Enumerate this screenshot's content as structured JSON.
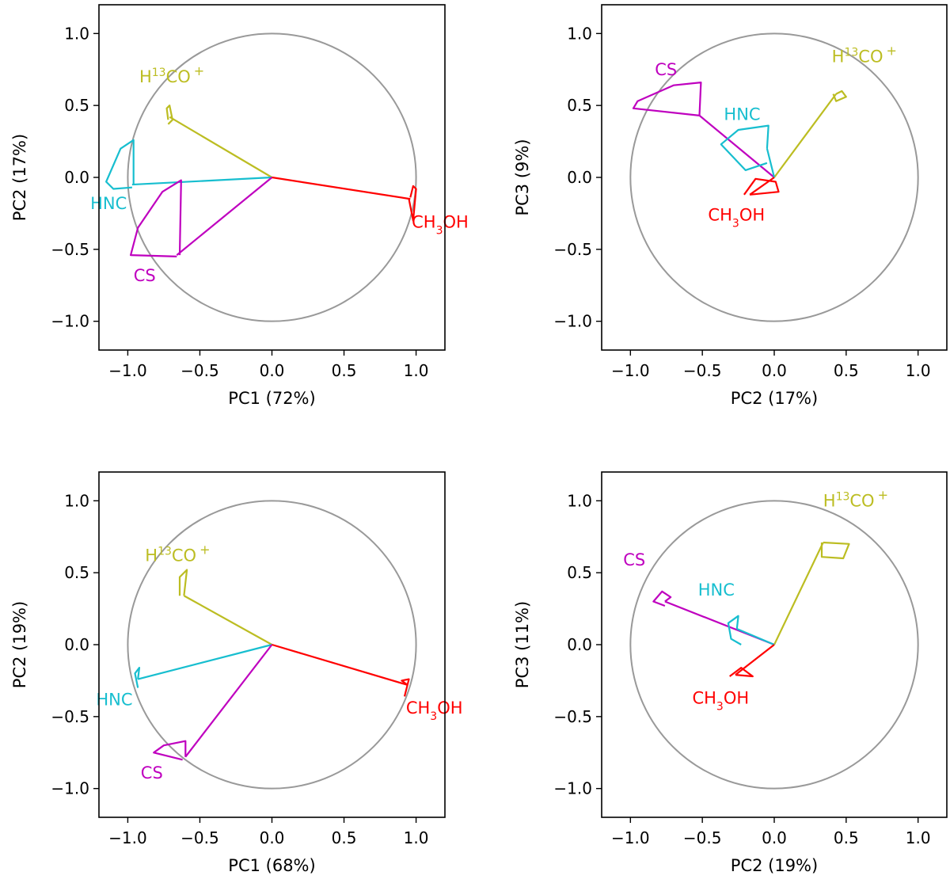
{
  "chart_data": [
    {
      "type": "biplot",
      "xlabel": "PC1 (72%)",
      "ylabel": "PC2 (17%)",
      "xlim": [
        -1.2,
        1.2
      ],
      "ylim": [
        -1.2,
        1.2
      ],
      "xticks": [
        "−1.0",
        "−0.5",
        "0.0",
        "0.5",
        "1.0"
      ],
      "yticks": [
        "−1.0",
        "−0.5",
        "0.0",
        "0.5",
        "1.0"
      ],
      "unit_circle": true,
      "vectors": [
        {
          "name": "H13CO+",
          "label": "H",
          "sup": "13",
          "rest": "CO",
          "sup2": "+",
          "color": "#bcbd22",
          "x": -0.71,
          "y": 0.42,
          "label_x": -0.92,
          "label_y": 0.66,
          "lobe": [
            [
              -0.72,
              0.4
            ],
            [
              -0.73,
              0.48
            ],
            [
              -0.71,
              0.5
            ],
            [
              -0.69,
              0.4
            ],
            [
              -0.72,
              0.37
            ]
          ]
        },
        {
          "name": "HNC",
          "label": "HNC",
          "color": "#17becf",
          "x": -0.97,
          "y": -0.05,
          "label_x": -1.26,
          "label_y": -0.22,
          "lobe": [
            [
              -0.96,
              -0.05
            ],
            [
              -0.96,
              0.26
            ],
            [
              -1.05,
              0.2
            ],
            [
              -1.15,
              -0.03
            ],
            [
              -1.1,
              -0.08
            ],
            [
              -0.97,
              -0.07
            ]
          ]
        },
        {
          "name": "CS",
          "label": "CS",
          "color": "#bf00bf",
          "x": -0.66,
          "y": -0.54,
          "label_x": -0.96,
          "label_y": -0.72,
          "lobe": [
            [
              -0.64,
              -0.54
            ],
            [
              -0.63,
              -0.02
            ],
            [
              -0.76,
              -0.1
            ],
            [
              -0.93,
              -0.35
            ],
            [
              -0.98,
              -0.54
            ],
            [
              -0.66,
              -0.55
            ]
          ]
        },
        {
          "name": "CH3OH",
          "label": "CH",
          "sub": "3",
          "rest": "OH",
          "color": "#ff0000",
          "x": 0.96,
          "y": -0.15,
          "label_x": 0.97,
          "label_y": -0.35,
          "lobe": [
            [
              0.96,
              -0.14
            ],
            [
              0.98,
              -0.06
            ],
            [
              1.0,
              -0.08
            ],
            [
              0.98,
              -0.3
            ],
            [
              0.95,
              -0.15
            ]
          ]
        }
      ]
    },
    {
      "type": "biplot",
      "xlabel": "PC2 (17%)",
      "ylabel": "PC3 (9%)",
      "xlim": [
        -1.2,
        1.2
      ],
      "ylim": [
        -1.2,
        1.2
      ],
      "xticks": [
        "−1.0",
        "−0.5",
        "0.0",
        "0.5",
        "1.0"
      ],
      "yticks": [
        "−1.0",
        "−0.5",
        "0.0",
        "0.5",
        "1.0"
      ],
      "unit_circle": true,
      "vectors": [
        {
          "name": "H13CO+",
          "label": "H",
          "sup": "13",
          "rest": "CO",
          "sup2": "+",
          "color": "#bcbd22",
          "x": 0.43,
          "y": 0.58,
          "label_x": 0.4,
          "label_y": 0.8,
          "lobe": [
            [
              0.43,
              0.58
            ],
            [
              0.47,
              0.6
            ],
            [
              0.5,
              0.56
            ],
            [
              0.43,
              0.53
            ],
            [
              0.41,
              0.58
            ]
          ]
        },
        {
          "name": "CS",
          "label": "CS",
          "color": "#bf00bf",
          "x": -0.52,
          "y": 0.43,
          "label_x": -0.83,
          "label_y": 0.71,
          "lobe": [
            [
              -0.52,
              0.43
            ],
            [
              -0.51,
              0.66
            ],
            [
              -0.7,
              0.64
            ],
            [
              -0.95,
              0.53
            ],
            [
              -0.98,
              0.48
            ],
            [
              -0.52,
              0.43
            ]
          ]
        },
        {
          "name": "HNC",
          "label": "HNC",
          "color": "#17becf",
          "x": -0.05,
          "y": 0.2,
          "label_x": -0.35,
          "label_y": 0.4,
          "lobe": [
            [
              -0.05,
              0.2
            ],
            [
              -0.04,
              0.36
            ],
            [
              -0.25,
              0.33
            ],
            [
              -0.37,
              0.23
            ],
            [
              -0.2,
              0.05
            ],
            [
              -0.05,
              0.1
            ]
          ]
        },
        {
          "name": "CH3OH",
          "label": "CH",
          "sub": "3",
          "rest": "OH",
          "color": "#ff0000",
          "x": -0.17,
          "y": -0.12,
          "label_x": -0.46,
          "label_y": -0.3,
          "lobe": [
            [
              -0.17,
              -0.12
            ],
            [
              0.03,
              -0.1
            ],
            [
              0.01,
              -0.03
            ],
            [
              -0.13,
              -0.01
            ],
            [
              -0.21,
              -0.12
            ]
          ]
        }
      ]
    },
    {
      "type": "biplot",
      "xlabel": "PC1 (68%)",
      "ylabel": "PC2 (19%)",
      "xlim": [
        -1.2,
        1.2
      ],
      "ylim": [
        -1.2,
        1.2
      ],
      "xticks": [
        "−1.0",
        "−0.5",
        "0.0",
        "0.5",
        "1.0"
      ],
      "yticks": [
        "−1.0",
        "−0.5",
        "0.0",
        "0.5",
        "1.0"
      ],
      "unit_circle": true,
      "vectors": [
        {
          "name": "H13CO+",
          "label": "H",
          "sup": "13",
          "rest": "CO",
          "sup2": "+",
          "color": "#bcbd22",
          "x": -0.61,
          "y": 0.34,
          "label_x": -0.88,
          "label_y": 0.58,
          "lobe": [
            [
              -0.61,
              0.34
            ],
            [
              -0.59,
              0.52
            ],
            [
              -0.64,
              0.47
            ],
            [
              -0.64,
              0.34
            ]
          ]
        },
        {
          "name": "HNC",
          "label": "HNC",
          "color": "#17becf",
          "x": -0.93,
          "y": -0.24,
          "label_x": -1.22,
          "label_y": -0.42,
          "lobe": [
            [
              -0.93,
              -0.24
            ],
            [
              -0.92,
              -0.16
            ],
            [
              -0.95,
              -0.2
            ],
            [
              -0.93,
              -0.3
            ]
          ]
        },
        {
          "name": "CS",
          "label": "CS",
          "color": "#bf00bf",
          "x": -0.6,
          "y": -0.78,
          "label_x": -0.91,
          "label_y": -0.93,
          "lobe": [
            [
              -0.6,
              -0.78
            ],
            [
              -0.6,
              -0.67
            ],
            [
              -0.75,
              -0.7
            ],
            [
              -0.82,
              -0.75
            ],
            [
              -0.62,
              -0.8
            ]
          ]
        },
        {
          "name": "CH3OH",
          "label": "CH",
          "sub": "3",
          "rest": "OH",
          "color": "#ff0000",
          "x": 0.94,
          "y": -0.28,
          "label_x": 0.93,
          "label_y": -0.48,
          "lobe": [
            [
              0.94,
              -0.28
            ],
            [
              0.9,
              -0.25
            ],
            [
              0.95,
              -0.24
            ],
            [
              0.92,
              -0.36
            ]
          ]
        }
      ]
    },
    {
      "type": "biplot",
      "xlabel": "PC2 (19%)",
      "ylabel": "PC3 (11%)",
      "xlim": [
        -1.2,
        1.2
      ],
      "ylim": [
        -1.2,
        1.2
      ],
      "xticks": [
        "−1.0",
        "−0.5",
        "0.0",
        "0.5",
        "1.0"
      ],
      "yticks": [
        "−1.0",
        "−0.5",
        "0.0",
        "0.5",
        "1.0"
      ],
      "unit_circle": true,
      "vectors": [
        {
          "name": "H13CO+",
          "label": "H",
          "sup": "13",
          "rest": "CO",
          "sup2": "+",
          "color": "#bcbd22",
          "x": 0.34,
          "y": 0.71,
          "label_x": 0.34,
          "label_y": 0.96,
          "lobe": [
            [
              0.34,
              0.71
            ],
            [
              0.52,
              0.7
            ],
            [
              0.48,
              0.6
            ],
            [
              0.33,
              0.61
            ],
            [
              0.33,
              0.71
            ]
          ]
        },
        {
          "name": "CS",
          "label": "CS",
          "color": "#bf00bf",
          "x": -0.76,
          "y": 0.3,
          "label_x": -1.05,
          "label_y": 0.55,
          "lobe": [
            [
              -0.76,
              0.3
            ],
            [
              -0.72,
              0.33
            ],
            [
              -0.78,
              0.37
            ],
            [
              -0.84,
              0.3
            ],
            [
              -0.76,
              0.27
            ]
          ]
        },
        {
          "name": "HNC",
          "label": "HNC",
          "color": "#17becf",
          "x": -0.26,
          "y": 0.11,
          "label_x": -0.53,
          "label_y": 0.34,
          "lobe": [
            [
              -0.26,
              0.11
            ],
            [
              -0.25,
              0.2
            ],
            [
              -0.32,
              0.15
            ],
            [
              -0.3,
              0.04
            ],
            [
              -0.23,
              0.0
            ]
          ]
        },
        {
          "name": "CH3OH",
          "label": "CH",
          "sub": "3",
          "rest": "OH",
          "color": "#ff0000",
          "x": -0.27,
          "y": -0.21,
          "label_x": -0.57,
          "label_y": -0.41,
          "lobe": [
            [
              -0.27,
              -0.21
            ],
            [
              -0.15,
              -0.22
            ],
            [
              -0.23,
              -0.16
            ],
            [
              -0.31,
              -0.22
            ]
          ]
        }
      ]
    }
  ]
}
